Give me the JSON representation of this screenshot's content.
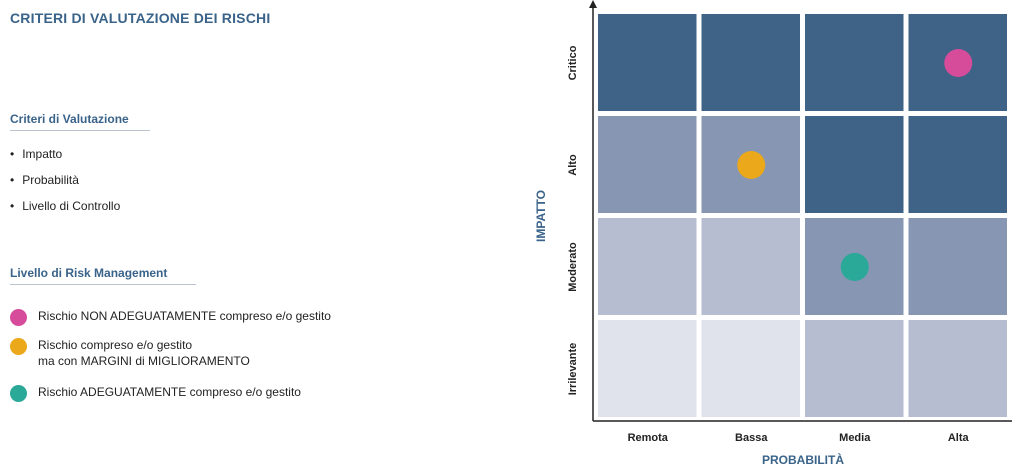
{
  "title": "CRITERI DI VALUTAZIONE DEI RISCHI",
  "criteria_section": {
    "heading": "Criteri di Valutazione",
    "items": [
      "Impatto",
      "Probabilità",
      "Livello di Controllo"
    ]
  },
  "risk_section": {
    "heading": "Livello di Risk Management",
    "legend": [
      {
        "line1": "Rischio NON ADEGUATAMENTE compreso e/o gestito",
        "line2": "",
        "color": "#d64c9b"
      },
      {
        "line1": "Rischio compreso e/o gestito",
        "line2": "ma con MARGINI di MIGLIORAMENTO",
        "color": "#eaa81a"
      },
      {
        "line1": "Rischio ADEGUATAMENTE compreso e/o gestito",
        "line2": "",
        "color": "#2aa898"
      }
    ]
  },
  "matrix": {
    "y_axis_label": "IMPATTO",
    "x_axis_label": "PROBABILITÀ",
    "impact_levels_top_to_bottom": [
      "Critico",
      "Alto",
      "Moderato",
      "Irrilevante"
    ],
    "probability_levels": [
      "Remota",
      "Bassa",
      "Media",
      "Alta"
    ],
    "shade_colors": [
      "#e0e3ec",
      "#b7bdd1",
      "#8796b2",
      "#3e6387"
    ],
    "cell_shades_top_to_bottom": [
      [
        3,
        3,
        3,
        3
      ],
      [
        2,
        2,
        3,
        3
      ],
      [
        1,
        1,
        2,
        2
      ],
      [
        0,
        0,
        1,
        1
      ]
    ],
    "markers": [
      {
        "impact": "Critico",
        "probability": "Alta",
        "legend_index": 0
      },
      {
        "impact": "Alto",
        "probability": "Bassa",
        "legend_index": 1
      },
      {
        "impact": "Moderato",
        "probability": "Media",
        "legend_index": 2
      }
    ]
  }
}
